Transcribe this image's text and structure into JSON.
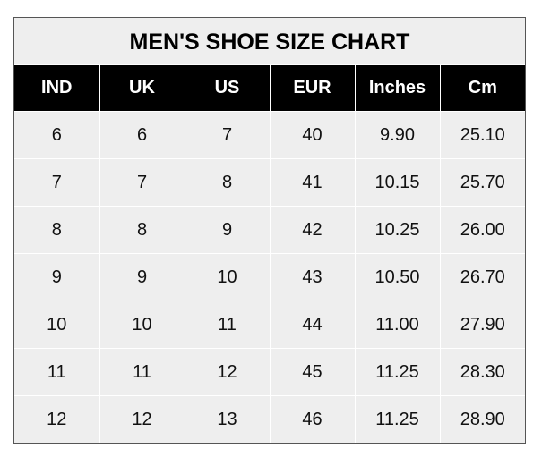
{
  "title": "MEN'S SHOE SIZE CHART",
  "columns": [
    "IND",
    "UK",
    "US",
    "EUR",
    "Inches",
    "Cm"
  ],
  "rows": [
    [
      "6",
      "6",
      "7",
      "40",
      "9.90",
      "25.10"
    ],
    [
      "7",
      "7",
      "8",
      "41",
      "10.15",
      "25.70"
    ],
    [
      "8",
      "8",
      "9",
      "42",
      "10.25",
      "26.00"
    ],
    [
      "9",
      "9",
      "10",
      "43",
      "10.50",
      "26.70"
    ],
    [
      "10",
      "10",
      "11",
      "44",
      "11.00",
      "27.90"
    ],
    [
      "11",
      "11",
      "12",
      "45",
      "11.25",
      "28.30"
    ],
    [
      "12",
      "12",
      "13",
      "46",
      "11.25",
      "28.90"
    ]
  ],
  "colors": {
    "header_bg": "#000000",
    "cell_bg": "#eeeeee",
    "title_bg": "#eeeeee"
  }
}
